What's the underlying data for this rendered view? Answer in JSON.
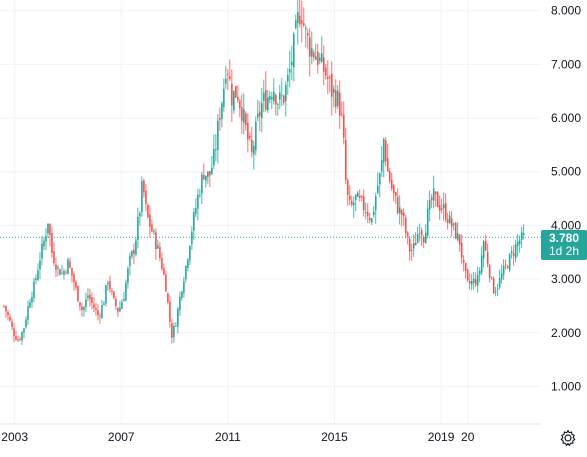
{
  "colors": {
    "up": "#26a69a",
    "down": "#ef5350",
    "grid": "#f0f3fa",
    "axis_text": "#131722",
    "axis_line": "#e0e3eb",
    "price_line": "#26a69a",
    "tag_bg": "#26a69a"
  },
  "chart_data": {
    "type": "candlestick",
    "x_ticks": [
      "2003",
      "2007",
      "2011",
      "2015",
      "2019",
      "20"
    ],
    "y_ticks": [
      "1.000",
      "2.000",
      "3.000",
      "4.000",
      "5.000",
      "6.000",
      "7.000",
      "8.000"
    ],
    "ylim": [
      0.3,
      8.2
    ],
    "xlim": [
      2002.45,
      2022.75
    ],
    "grid": true,
    "current_price": 3.78,
    "current_price_label": "3.780",
    "countdown_label": "1d 2h",
    "series_approx_close": [
      [
        2002.6,
        2.5
      ],
      [
        2002.8,
        2.25
      ],
      [
        2002.95,
        2.0
      ],
      [
        2003.15,
        1.85
      ],
      [
        2003.35,
        2.1
      ],
      [
        2003.55,
        2.6
      ],
      [
        2003.75,
        2.9
      ],
      [
        2003.95,
        3.4
      ],
      [
        2004.15,
        3.8
      ],
      [
        2004.25,
        4.1
      ],
      [
        2004.4,
        3.5
      ],
      [
        2004.6,
        3.2
      ],
      [
        2004.8,
        3.1
      ],
      [
        2005.0,
        3.3
      ],
      [
        2005.2,
        3.0
      ],
      [
        2005.35,
        2.7
      ],
      [
        2005.55,
        2.4
      ],
      [
        2005.75,
        2.7
      ],
      [
        2005.95,
        2.5
      ],
      [
        2006.15,
        2.3
      ],
      [
        2006.35,
        2.6
      ],
      [
        2006.5,
        3.0
      ],
      [
        2006.7,
        2.6
      ],
      [
        2006.9,
        2.4
      ],
      [
        2007.1,
        2.7
      ],
      [
        2007.3,
        3.3
      ],
      [
        2007.5,
        3.6
      ],
      [
        2007.7,
        4.3
      ],
      [
        2007.8,
        4.8
      ],
      [
        2007.95,
        4.2
      ],
      [
        2008.15,
        3.9
      ],
      [
        2008.35,
        3.6
      ],
      [
        2008.55,
        3.2
      ],
      [
        2008.7,
        2.8
      ],
      [
        2008.8,
        2.3
      ],
      [
        2008.9,
        1.95
      ],
      [
        2009.05,
        2.2
      ],
      [
        2009.25,
        2.8
      ],
      [
        2009.45,
        3.3
      ],
      [
        2009.6,
        3.8
      ],
      [
        2009.75,
        4.2
      ],
      [
        2009.9,
        4.6
      ],
      [
        2010.1,
        5.0
      ],
      [
        2010.3,
        4.9
      ],
      [
        2010.5,
        5.3
      ],
      [
        2010.7,
        6.1
      ],
      [
        2010.85,
        6.6
      ],
      [
        2010.95,
        7.1
      ],
      [
        2011.15,
        6.4
      ],
      [
        2011.35,
        6.5
      ],
      [
        2011.55,
        6.1
      ],
      [
        2011.75,
        5.6
      ],
      [
        2011.9,
        5.3
      ],
      [
        2012.1,
        5.9
      ],
      [
        2012.3,
        6.3
      ],
      [
        2012.5,
        6.4
      ],
      [
        2012.7,
        6.6
      ],
      [
        2012.9,
        6.3
      ],
      [
        2013.1,
        6.4
      ],
      [
        2013.3,
        6.8
      ],
      [
        2013.5,
        7.4
      ],
      [
        2013.65,
        7.9
      ],
      [
        2013.75,
        8.05
      ],
      [
        2013.9,
        7.6
      ],
      [
        2014.1,
        7.3
      ],
      [
        2014.3,
        7.2
      ],
      [
        2014.5,
        7.0
      ],
      [
        2014.7,
        6.8
      ],
      [
        2014.9,
        6.5
      ],
      [
        2015.1,
        6.4
      ],
      [
        2015.25,
        6.1
      ],
      [
        2015.35,
        5.5
      ],
      [
        2015.45,
        4.6
      ],
      [
        2015.6,
        4.3
      ],
      [
        2015.8,
        4.5
      ],
      [
        2016.0,
        4.4
      ],
      [
        2016.2,
        4.3
      ],
      [
        2016.4,
        4.1
      ],
      [
        2016.6,
        4.7
      ],
      [
        2016.75,
        5.0
      ],
      [
        2016.85,
        5.6
      ],
      [
        2017.0,
        5.0
      ],
      [
        2017.2,
        4.6
      ],
      [
        2017.4,
        4.3
      ],
      [
        2017.55,
        4.2
      ],
      [
        2017.7,
        3.8
      ],
      [
        2017.85,
        3.5
      ],
      [
        2018.0,
        3.6
      ],
      [
        2018.2,
        4.0
      ],
      [
        2018.35,
        3.8
      ],
      [
        2018.5,
        4.2
      ],
      [
        2018.7,
        4.55
      ],
      [
        2018.9,
        4.4
      ],
      [
        2019.1,
        4.3
      ],
      [
        2019.3,
        4.1
      ],
      [
        2019.5,
        3.9
      ],
      [
        2019.7,
        3.7
      ],
      [
        2019.85,
        3.2
      ],
      [
        2020.0,
        2.9
      ],
      [
        2020.2,
        2.95
      ],
      [
        2020.4,
        3.0
      ],
      [
        2020.6,
        3.7
      ],
      [
        2020.8,
        3.2
      ],
      [
        2020.95,
        2.8
      ],
      [
        2021.1,
        2.85
      ],
      [
        2021.3,
        3.1
      ],
      [
        2021.5,
        3.3
      ],
      [
        2021.7,
        3.5
      ],
      [
        2021.9,
        3.7
      ],
      [
        2022.1,
        3.78
      ]
    ]
  }
}
